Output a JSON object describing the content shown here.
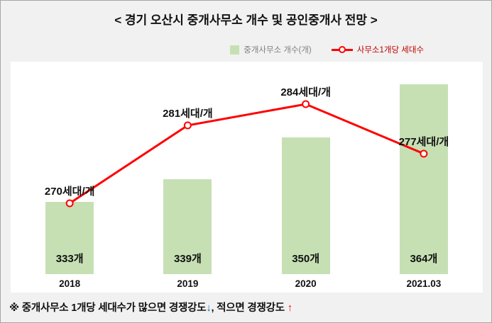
{
  "title": "< 경기 오산시 중개사무소 개수 및 공인중개사 전망 >",
  "note": {
    "prefix": "※ 중개사무소 1개당 세대수가 많으면 경쟁강도",
    "down_arrow": "↓",
    "middle": ", 적으면 경쟁강도 ",
    "up_arrow": "↑"
  },
  "colors": {
    "background": "#f1f1f1",
    "bar_fill": "#c6e0b4",
    "line": "#ff0000",
    "down_arrow": "#0070c0",
    "up_arrow": "#ff0000"
  },
  "chart_data": {
    "type": "bar",
    "subtype": "bar-with-line-overlay",
    "categories": [
      "2018",
      "2019",
      "2020",
      "2021.03"
    ],
    "series": [
      {
        "name": "중개사무소 개수(개)",
        "type": "bar",
        "values": [
          333,
          339,
          350,
          364
        ],
        "data_labels": [
          "333개",
          "339개",
          "350개",
          "364개"
        ],
        "color": "#c6e0b4",
        "axis_range": [
          314,
          370
        ]
      },
      {
        "name": "사무소1개당 세대수",
        "type": "line",
        "values": [
          270,
          281,
          284,
          277
        ],
        "data_labels": [
          "270세대/개",
          "281세대/개",
          "284세대/개",
          "277세대/개"
        ],
        "color": "#ff0000",
        "axis_range": [
          260,
          290
        ]
      }
    ],
    "legend_position": "top-right",
    "grid": false,
    "title": "< 경기 오산시 중개사무소 개수 및 공인중개사 전망 >"
  }
}
